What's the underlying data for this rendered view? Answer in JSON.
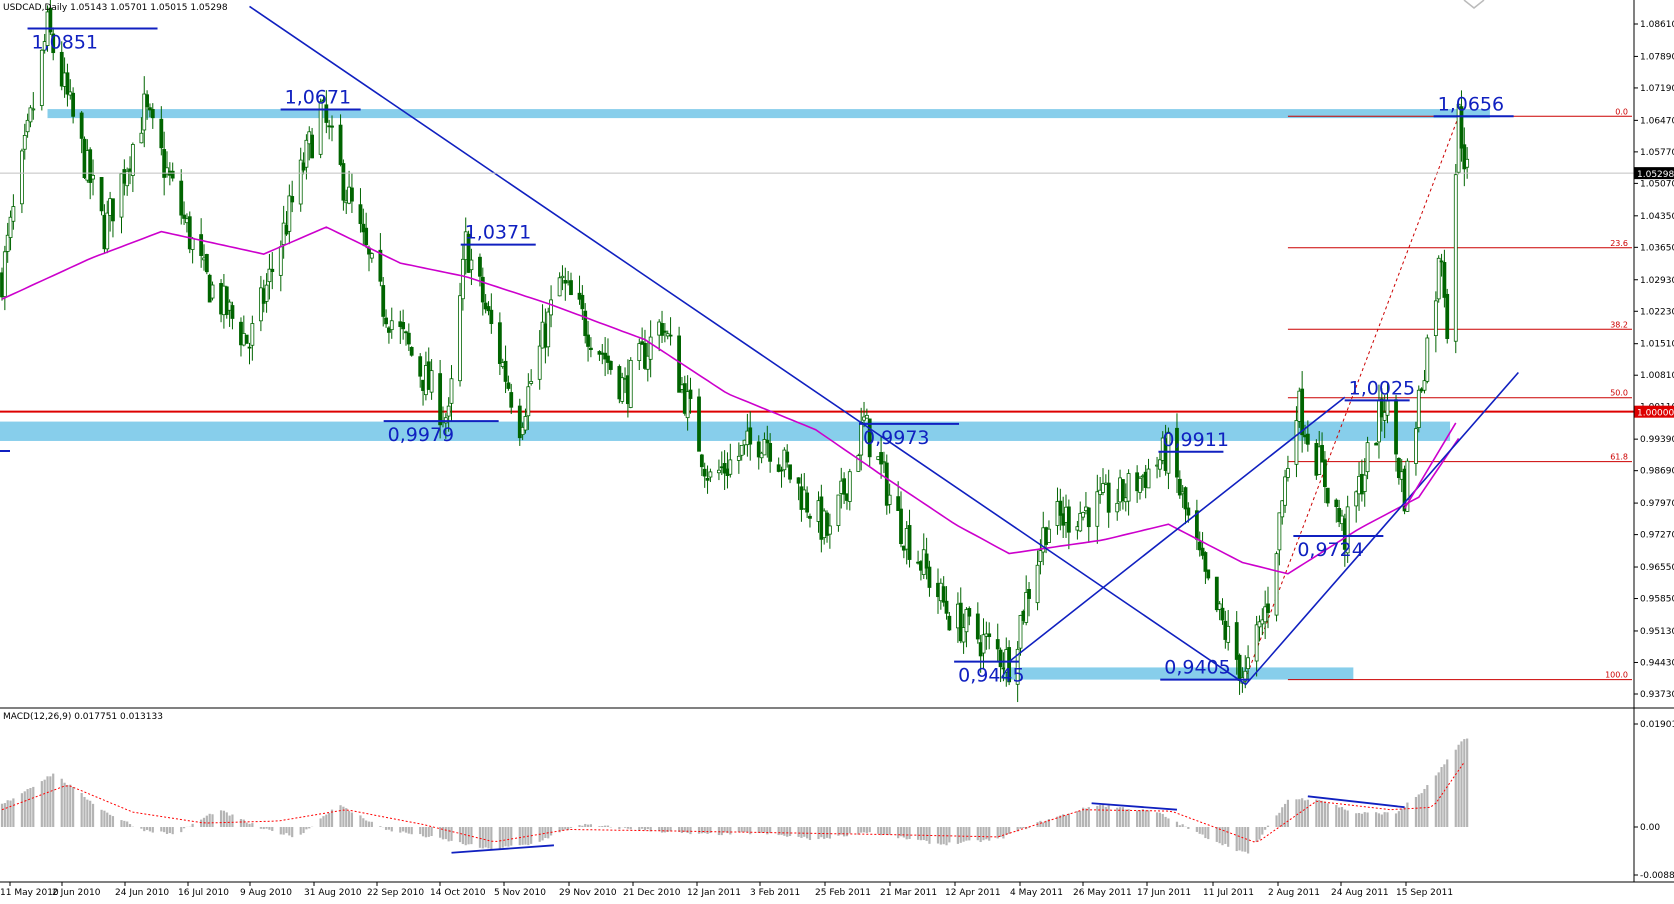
{
  "header": {
    "price_title": "USDCAD,Daily  1.05143 1.05701 1.05015 1.05298",
    "macd_title": "MACD(12,26,9) 0.017751 0.013133"
  },
  "colors": {
    "background": "#ffffff",
    "candle": "#006400",
    "ma_line": "#cc00cc",
    "trend_lines": "#1020c0",
    "zones": "#87ceeb",
    "fibo": "#cc0000",
    "parity": "#dd0000",
    "macd_hist": "#b4b4b4",
    "macd_signal": "#ff0000"
  },
  "icons": {
    "corner_marker": "chevron-down-icon"
  },
  "chart_data": [
    {
      "type": "candlestick",
      "title": "USDCAD,Daily  1.05143 1.05701 1.05015 1.05298",
      "symbol": "USDCAD",
      "timeframe": "Daily",
      "last_ohlc": {
        "open": 1.05143,
        "high": 1.05701,
        "low": 1.05015,
        "close": 1.05298
      },
      "ylim": [
        0.9373,
        1.0861
      ],
      "y_ticks": [
        "1.08610",
        "1.07890",
        "1.07190",
        "1.06470",
        "1.05770",
        "1.05070",
        "1.04350",
        "1.03650",
        "1.02930",
        "1.02230",
        "1.01510",
        "1.00810",
        "1.00110",
        "0.99390",
        "0.98690",
        "0.97970",
        "0.97270",
        "0.96550",
        "0.95850",
        "0.95130",
        "0.94430",
        "0.93730"
      ],
      "current_price_label": "1.05298",
      "parity_label": "1.00000",
      "x_ticks": [
        "11 May 2010",
        "2 Jun 2010",
        "24 Jun 2010",
        "16 Jul 2010",
        "9 Aug 2010",
        "31 Aug 2010",
        "22 Sep 2010",
        "14 Oct 2010",
        "5 Nov 2010",
        "29 Nov 2010",
        "21 Dec 2010",
        "12 Jan 2011",
        "3 Feb 2011",
        "25 Feb 2011",
        "21 Mar 2011",
        "12 Apr 2011",
        "4 May 2011",
        "26 May 2011",
        "17 Jun 2011",
        "11 Jul 2011",
        "2 Aug 2011",
        "24 Aug 2011",
        "15 Sep 2011"
      ],
      "key_points": [
        {
          "date": "2010-05-10",
          "price": 1.03
        },
        {
          "date": "2010-05-26",
          "price": 1.0851
        },
        {
          "date": "2010-06-15",
          "price": 1.04
        },
        {
          "date": "2010-06-29",
          "price": 1.0671
        },
        {
          "date": "2010-07-20",
          "price": 1.03
        },
        {
          "date": "2010-08-05",
          "price": 1.015
        },
        {
          "date": "2010-08-30",
          "price": 1.0671
        },
        {
          "date": "2010-09-20",
          "price": 1.025
        },
        {
          "date": "2010-10-14",
          "price": 0.9979
        },
        {
          "date": "2010-10-20",
          "price": 1.0371
        },
        {
          "date": "2010-11-08",
          "price": 0.9979
        },
        {
          "date": "2010-11-22",
          "price": 1.029
        },
        {
          "date": "2010-12-15",
          "price": 1.005
        },
        {
          "date": "2010-12-28",
          "price": 1.02
        },
        {
          "date": "2011-01-14",
          "price": 0.985
        },
        {
          "date": "2011-02-02",
          "price": 0.995
        },
        {
          "date": "2011-02-25",
          "price": 0.972
        },
        {
          "date": "2011-03-09",
          "price": 0.9973
        },
        {
          "date": "2011-03-21",
          "price": 0.976
        },
        {
          "date": "2011-04-08",
          "price": 0.955
        },
        {
          "date": "2011-04-29",
          "price": 0.9445
        },
        {
          "date": "2011-05-12",
          "price": 0.975
        },
        {
          "date": "2011-06-07",
          "price": 0.981
        },
        {
          "date": "2011-06-24",
          "price": 0.9911
        },
        {
          "date": "2011-07-08",
          "price": 0.96
        },
        {
          "date": "2011-07-21",
          "price": 0.9405
        },
        {
          "date": "2011-07-29",
          "price": 0.958
        },
        {
          "date": "2011-08-08",
          "price": 1.0025
        },
        {
          "date": "2011-08-25",
          "price": 0.9724
        },
        {
          "date": "2011-09-08",
          "price": 1.0025
        },
        {
          "date": "2011-09-15",
          "price": 0.982
        },
        {
          "date": "2011-09-28",
          "price": 1.036
        },
        {
          "date": "2011-09-30",
          "price": 1.02
        },
        {
          "date": "2011-10-04",
          "price": 1.0656
        },
        {
          "date": "2011-10-07",
          "price": 1.05298
        }
      ],
      "moving_average_points": [
        {
          "date": "2010-05-10",
          "price": 1.025
        },
        {
          "date": "2010-06-10",
          "price": 1.034
        },
        {
          "date": "2010-07-05",
          "price": 1.04
        },
        {
          "date": "2010-08-10",
          "price": 1.035
        },
        {
          "date": "2010-09-01",
          "price": 1.041
        },
        {
          "date": "2010-09-27",
          "price": 1.033
        },
        {
          "date": "2010-10-20",
          "price": 1.03
        },
        {
          "date": "2010-11-18",
          "price": 1.024
        },
        {
          "date": "2010-12-22",
          "price": 1.016
        },
        {
          "date": "2011-01-20",
          "price": 1.004
        },
        {
          "date": "2011-02-20",
          "price": 0.996
        },
        {
          "date": "2011-03-15",
          "price": 0.986
        },
        {
          "date": "2011-04-10",
          "price": 0.975
        },
        {
          "date": "2011-04-29",
          "price": 0.9685
        },
        {
          "date": "2011-06-01",
          "price": 0.9715
        },
        {
          "date": "2011-06-24",
          "price": 0.975
        },
        {
          "date": "2011-07-20",
          "price": 0.9665
        },
        {
          "date": "2011-08-05",
          "price": 0.964
        },
        {
          "date": "2011-08-30",
          "price": 0.974
        },
        {
          "date": "2011-09-20",
          "price": 0.981
        },
        {
          "date": "2011-10-05",
          "price": 0.995
        }
      ],
      "price_labels": [
        {
          "text": "1,0851",
          "date": "2010-05-26",
          "price": 1.0851
        },
        {
          "text": "1,0671",
          "date": "2010-08-30",
          "price": 1.0671
        },
        {
          "text": "1,0371",
          "date": "2010-10-20",
          "price": 1.0371
        },
        {
          "text": "0,9979",
          "date": "2010-10-14",
          "price": 0.9979
        },
        {
          "text": "0,9973",
          "date": "2011-03-09",
          "price": 0.9973
        },
        {
          "text": "0,9911",
          "date": "2011-06-24",
          "price": 0.9911
        },
        {
          "text": "0,9445",
          "date": "2011-04-29",
          "price": 0.9445
        },
        {
          "text": "0,9405",
          "date": "2011-07-21",
          "price": 0.9405
        },
        {
          "text": "1,0025",
          "date": "2011-09-08",
          "price": 1.0025
        },
        {
          "text": "0,9724",
          "date": "2011-08-28",
          "price": 0.9724
        },
        {
          "text": "1,0656",
          "date": "2011-10-04",
          "price": 1.0656
        }
      ],
      "horizontal_zones": [
        {
          "from_date": "2010-05-26",
          "to_date": "2011-10-15",
          "low": 1.0652,
          "high": 1.0672
        },
        {
          "from_date": "2010-04-30",
          "to_date": "2011-10-01",
          "low": 0.9935,
          "high": 0.9978
        },
        {
          "from_date": "2011-04-27",
          "to_date": "2011-08-28",
          "low": 0.9405,
          "high": 0.9432
        }
      ],
      "horizontal_lines": [
        {
          "name": "parity",
          "price": 1.0
        }
      ],
      "trend_lines": [
        {
          "from": {
            "date": "2010-08-05",
            "price": 1.09
          },
          "to": {
            "date": "2011-07-21",
            "price": 0.9395
          }
        },
        {
          "from": {
            "date": "2011-04-29",
            "price": 0.9445
          },
          "to": {
            "date": "2011-08-25",
            "price": 1.0032
          }
        },
        {
          "from": {
            "date": "2011-07-21",
            "price": 0.9393
          },
          "to": {
            "date": "2011-10-25",
            "price": 1.0087
          }
        },
        {
          "from": {
            "date": "2011-09-15",
            "price": 0.9785
          },
          "to": {
            "date": "2011-10-03",
            "price": 0.9975
          }
        }
      ],
      "fibonacci": {
        "from_date": "2011-07-21",
        "to_date": "2011-10-04",
        "levels": [
          {
            "label": "0.0",
            "price": 1.0656
          },
          {
            "label": "23.6",
            "price": 1.0364
          },
          {
            "label": "38.2",
            "price": 1.0183
          },
          {
            "label": "50.0",
            "price": 1.0031
          },
          {
            "label": "61.8",
            "price": 0.9889
          },
          {
            "label": "100.0",
            "price": 0.9405
          }
        ]
      },
      "macd": {
        "title": "MACD(12,26,9) 0.017751 0.013133",
        "params": [
          12,
          26,
          9
        ],
        "main": 0.017751,
        "signal": 0.013133,
        "ylim": [
          -0.008888,
          0.019019
        ],
        "y_ticks": [
          "0.019019",
          "0.00",
          "-0.008888"
        ],
        "histogram_points": [
          {
            "date": "2010-05-10",
            "value": 0.0045
          },
          {
            "date": "2010-05-28",
            "value": 0.0108
          },
          {
            "date": "2010-06-15",
            "value": 0.0032
          },
          {
            "date": "2010-06-28",
            "value": -0.0005
          },
          {
            "date": "2010-07-10",
            "value": -0.0015
          },
          {
            "date": "2010-07-25",
            "value": 0.0035
          },
          {
            "date": "2010-08-10",
            "value": -0.0005
          },
          {
            "date": "2010-08-22",
            "value": -0.002
          },
          {
            "date": "2010-09-05",
            "value": 0.0045
          },
          {
            "date": "2010-09-22",
            "value": -0.0005
          },
          {
            "date": "2010-10-12",
            "value": -0.0025
          },
          {
            "date": "2010-10-28",
            "value": -0.0045
          },
          {
            "date": "2010-11-12",
            "value": -0.0035
          },
          {
            "date": "2010-11-29",
            "value": 0.0005
          },
          {
            "date": "2010-12-20",
            "value": -0.0005
          },
          {
            "date": "2011-01-10",
            "value": -0.0015
          },
          {
            "date": "2011-01-31",
            "value": -0.0012
          },
          {
            "date": "2011-02-20",
            "value": -0.0025
          },
          {
            "date": "2011-03-10",
            "value": -0.001
          },
          {
            "date": "2011-04-05",
            "value": -0.0035
          },
          {
            "date": "2011-04-25",
            "value": -0.0025
          },
          {
            "date": "2011-05-10",
            "value": 0.001
          },
          {
            "date": "2011-05-30",
            "value": 0.0045
          },
          {
            "date": "2011-06-20",
            "value": 0.003
          },
          {
            "date": "2011-07-05",
            "value": -0.0015
          },
          {
            "date": "2011-07-22",
            "value": -0.0055
          },
          {
            "date": "2011-08-05",
            "value": 0.0055
          },
          {
            "date": "2011-08-15",
            "value": 0.0058
          },
          {
            "date": "2011-08-29",
            "value": 0.0028
          },
          {
            "date": "2011-09-12",
            "value": 0.0028
          },
          {
            "date": "2011-09-22",
            "value": 0.0075
          },
          {
            "date": "2011-10-06",
            "value": 0.0178
          }
        ],
        "signal_points": [
          {
            "date": "2010-05-10",
            "value": 0.0035
          },
          {
            "date": "2010-06-02",
            "value": 0.0085
          },
          {
            "date": "2010-06-25",
            "value": 0.003
          },
          {
            "date": "2010-07-20",
            "value": 0.0008
          },
          {
            "date": "2010-08-15",
            "value": 0.0012
          },
          {
            "date": "2010-09-08",
            "value": 0.0035
          },
          {
            "date": "2010-10-05",
            "value": 0.0005
          },
          {
            "date": "2010-10-30",
            "value": -0.003
          },
          {
            "date": "2010-11-25",
            "value": -0.0005
          },
          {
            "date": "2011-01-01",
            "value": -0.0008
          },
          {
            "date": "2011-02-10",
            "value": -0.0012
          },
          {
            "date": "2011-03-15",
            "value": -0.0015
          },
          {
            "date": "2011-04-25",
            "value": -0.002
          },
          {
            "date": "2011-05-25",
            "value": 0.0035
          },
          {
            "date": "2011-06-25",
            "value": 0.0032
          },
          {
            "date": "2011-07-25",
            "value": -0.0032
          },
          {
            "date": "2011-08-15",
            "value": 0.0052
          },
          {
            "date": "2011-09-10",
            "value": 0.0035
          },
          {
            "date": "2011-09-25",
            "value": 0.004
          },
          {
            "date": "2011-10-06",
            "value": 0.0131
          }
        ],
        "divergence_lines": [
          {
            "from": {
              "date": "2010-10-15",
              "value": -0.0052
            },
            "to": {
              "date": "2010-11-20",
              "value": -0.0037
            }
          },
          {
            "from": {
              "date": "2011-05-28",
              "value": 0.0048
            },
            "to": {
              "date": "2011-06-27",
              "value": 0.0035
            }
          },
          {
            "from": {
              "date": "2011-08-12",
              "value": 0.0062
            },
            "to": {
              "date": "2011-09-15",
              "value": 0.004
            }
          }
        ]
      }
    }
  ]
}
